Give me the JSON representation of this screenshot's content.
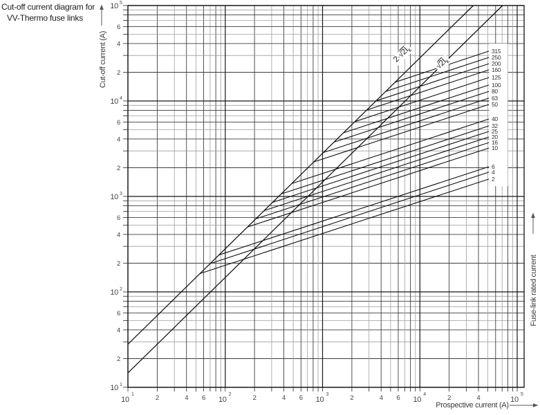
{
  "title": {
    "line1": "Cut-off current diagram for",
    "line2": "VV-Thermo fuse links"
  },
  "axes": {
    "x_label": "Prospective current (A)",
    "y_label": "Cut-off current (A)",
    "right_label": "Fuse-link rated current"
  },
  "chart_data": {
    "type": "line",
    "scale": "log-log",
    "x_range": [
      10,
      100000
    ],
    "y_range": [
      10,
      100000
    ],
    "x_axis_title": "Prospective current (A)",
    "y_axis_title": "Cut-off current (A)",
    "grid": "full log grid, minor lines 2-9 in every decade on both axes",
    "x_ticks": [
      {
        "v": 10,
        "exp": "1"
      },
      {
        "v": 20,
        "t": "2"
      },
      {
        "v": 40,
        "t": "4"
      },
      {
        "v": 60,
        "t": "6"
      },
      {
        "v": 100,
        "exp": "2"
      },
      {
        "v": 200,
        "t": "2"
      },
      {
        "v": 400,
        "t": "4"
      },
      {
        "v": 600,
        "t": "6"
      },
      {
        "v": 1000,
        "exp": "3"
      },
      {
        "v": 2000,
        "t": "2"
      },
      {
        "v": 4000,
        "t": "4"
      },
      {
        "v": 6000,
        "t": "6"
      },
      {
        "v": 10000,
        "exp": "4"
      },
      {
        "v": 20000,
        "t": "2"
      },
      {
        "v": 40000,
        "t": "4"
      },
      {
        "v": 100000,
        "exp": "5"
      }
    ],
    "y_ticks": [
      {
        "v": 100000,
        "exp": "5"
      },
      {
        "v": 60000,
        "t": "6"
      },
      {
        "v": 40000,
        "t": "4"
      },
      {
        "v": 20000,
        "t": "2"
      },
      {
        "v": 10000,
        "exp": "4"
      },
      {
        "v": 6000,
        "t": "6"
      },
      {
        "v": 4000,
        "t": "4"
      },
      {
        "v": 2000,
        "t": "2"
      },
      {
        "v": 1000,
        "exp": "3"
      },
      {
        "v": 600,
        "t": "6"
      },
      {
        "v": 400,
        "t": "4"
      },
      {
        "v": 200,
        "t": "2"
      },
      {
        "v": 100,
        "exp": "2"
      },
      {
        "v": 60,
        "t": "6"
      },
      {
        "v": 40,
        "t": "4"
      },
      {
        "v": 20,
        "t": "2"
      },
      {
        "v": 10,
        "exp": "1"
      }
    ],
    "reference_lines": [
      {
        "label_pre": "2·√",
        "label_over": "2I",
        "label_sub": "k",
        "factor": 2.828
      },
      {
        "label_pre": "√",
        "label_over": "2I",
        "label_sub": "k",
        "factor": 1.414
      }
    ],
    "curves": [
      {
        "rating": "315",
        "branch_prospective_A": 5570,
        "end_prospective_A": 51200,
        "end_cutoff_A": 33300
      },
      {
        "rating": "250",
        "branch_prospective_A": 4450,
        "end_prospective_A": 51200,
        "end_cutoff_A": 28600
      },
      {
        "rating": "200",
        "branch_prospective_A": 3550,
        "end_prospective_A": 51200,
        "end_cutoff_A": 24600
      },
      {
        "rating": "160",
        "branch_prospective_A": 2840,
        "end_prospective_A": 51200,
        "end_cutoff_A": 21200
      },
      {
        "rating": "125",
        "branch_prospective_A": 2150,
        "end_prospective_A": 51200,
        "end_cutoff_A": 17600
      },
      {
        "rating": "100",
        "branch_prospective_A": 1640,
        "end_prospective_A": 51200,
        "end_cutoff_A": 14700
      },
      {
        "rating": "80",
        "branch_prospective_A": 1310,
        "end_prospective_A": 51200,
        "end_cutoff_A": 12600
      },
      {
        "rating": "63",
        "branch_prospective_A": 1020,
        "end_prospective_A": 51200,
        "end_cutoff_A": 10700
      },
      {
        "rating": "50",
        "branch_prospective_A": 813,
        "end_prospective_A": 51200,
        "end_cutoff_A": 9200
      },
      {
        "rating": "40",
        "branch_prospective_A": 482,
        "end_prospective_A": 51200,
        "end_cutoff_A": 6480
      },
      {
        "rating": "32",
        "branch_prospective_A": 375,
        "end_prospective_A": 51200,
        "end_cutoff_A": 5480
      },
      {
        "rating": "25",
        "branch_prospective_A": 307,
        "end_prospective_A": 51200,
        "end_cutoff_A": 4800
      },
      {
        "rating": "20",
        "branch_prospective_A": 251,
        "end_prospective_A": 51200,
        "end_cutoff_A": 4200
      },
      {
        "rating": "16",
        "branch_prospective_A": 206,
        "end_prospective_A": 51200,
        "end_cutoff_A": 3670
      },
      {
        "rating": "10",
        "branch_prospective_A": 169,
        "end_prospective_A": 51200,
        "end_cutoff_A": 3215
      },
      {
        "rating": "6",
        "branch_prospective_A": 86,
        "end_prospective_A": 51200,
        "end_cutoff_A": 2050
      },
      {
        "rating": "4",
        "branch_prospective_A": 70,
        "end_prospective_A": 51200,
        "end_cutoff_A": 1795
      },
      {
        "rating": "2",
        "branch_prospective_A": 55,
        "end_prospective_A": 51200,
        "end_cutoff_A": 1520
      }
    ]
  }
}
